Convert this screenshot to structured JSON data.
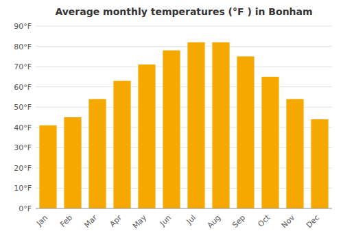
{
  "chart_data": {
    "type": "bar",
    "title": "Average monthly temperatures (°F ) in Bonham",
    "categories": [
      "Jan",
      "Feb",
      "Mar",
      "Apr",
      "May",
      "Jun",
      "Jul",
      "Aug",
      "Sep",
      "Oct",
      "Nov",
      "Dec"
    ],
    "values": [
      41,
      45,
      54,
      63,
      71,
      78,
      82,
      82,
      75,
      65,
      54,
      44
    ],
    "color": "#F5A800",
    "ylim": [
      0,
      90
    ],
    "yticks": [
      {
        "value": 0,
        "label": "0°F"
      },
      {
        "value": 10,
        "label": "10°F"
      },
      {
        "value": 20,
        "label": "20°F"
      },
      {
        "value": 30,
        "label": "30°F"
      },
      {
        "value": 40,
        "label": "40°F"
      },
      {
        "value": 50,
        "label": "50°F"
      },
      {
        "value": 60,
        "label": "60°F"
      },
      {
        "value": 70,
        "label": "70°F"
      },
      {
        "value": 80,
        "label": "80°F"
      },
      {
        "value": 90,
        "label": "90°F"
      }
    ],
    "grid": true
  }
}
